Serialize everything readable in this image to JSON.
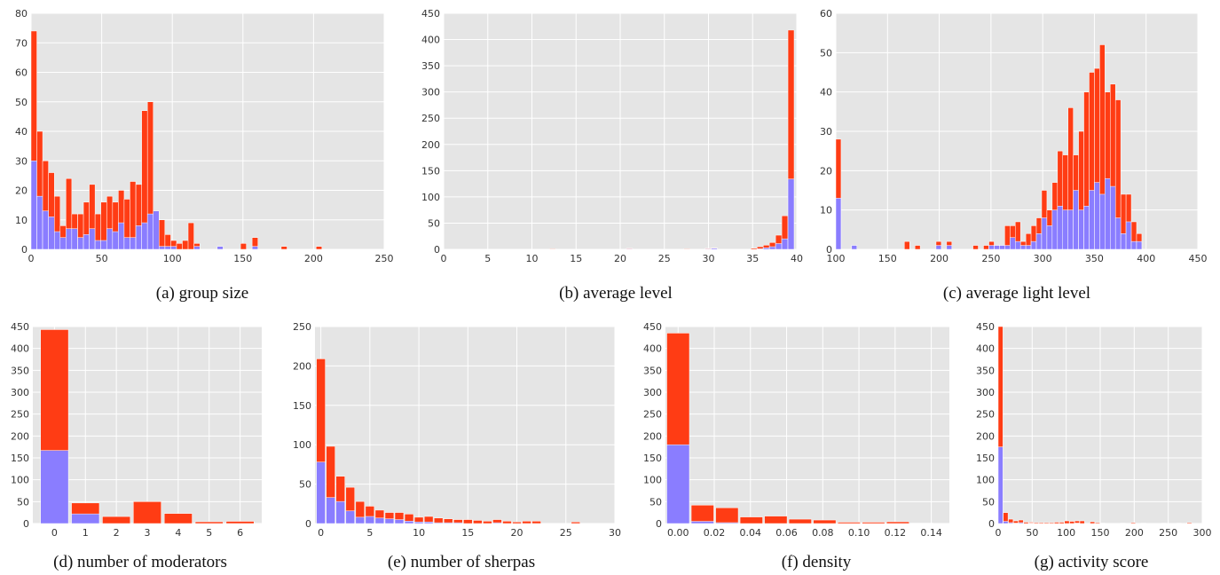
{
  "colors": {
    "total": "#ff3c14",
    "subset": "#8a7dff",
    "plot_bg": "#e5e5e5",
    "grid": "#ffffff"
  },
  "chart_data": [
    {
      "id": "a",
      "type": "bar",
      "caption": "(a) group size",
      "xlim": [
        0,
        250
      ],
      "ylim": [
        0,
        80
      ],
      "xticks": [
        0,
        50,
        100,
        150,
        200,
        250
      ],
      "yticks": [
        0,
        10,
        20,
        30,
        40,
        50,
        60,
        70,
        80
      ],
      "bin_width": 4.12,
      "bins_x": [
        0,
        4.1,
        8.2,
        12.4,
        16.5,
        20.6,
        24.7,
        28.8,
        33.0,
        37.1,
        41.2,
        45.3,
        49.4,
        53.6,
        57.7,
        61.8,
        65.9,
        70.0,
        74.2,
        78.3,
        82.4,
        86.5,
        90.6,
        94.8,
        98.9,
        103.0,
        107.1,
        111.2,
        115.4,
        119.5,
        123.6,
        131.8,
        148.3,
        156.5,
        177.1,
        201.8
      ],
      "total": [
        74,
        40,
        30,
        26,
        18,
        8,
        24,
        12,
        12,
        16,
        22,
        12,
        16,
        18,
        16,
        20,
        17,
        23,
        22,
        47,
        50,
        6,
        10,
        5,
        3,
        2,
        3,
        9,
        2,
        0,
        0,
        0,
        2,
        4,
        1,
        1
      ],
      "subset": [
        30,
        18,
        13,
        11,
        6,
        4,
        7,
        7,
        4,
        5,
        7,
        3,
        3,
        7,
        6,
        9,
        4,
        4,
        8,
        9,
        12,
        13,
        1,
        1,
        1,
        0,
        0,
        0,
        1,
        0,
        0,
        1,
        0,
        1,
        0,
        0
      ],
      "xlabel": "",
      "ylabel": ""
    },
    {
      "id": "b",
      "type": "bar",
      "caption": "(b) average level",
      "xlim": [
        0,
        40
      ],
      "ylim": [
        0,
        450
      ],
      "xticks": [
        0,
        5,
        10,
        15,
        20,
        25,
        30,
        35,
        40
      ],
      "yticks": [
        0,
        50,
        100,
        150,
        200,
        250,
        300,
        350,
        400,
        450
      ],
      "bin_width": 0.7,
      "bins_x": [
        12,
        20.7,
        27.2,
        29.6,
        30.3,
        34.8,
        35.5,
        36.2,
        36.9,
        37.6,
        38.3,
        39.0
      ],
      "total": [
        1,
        2,
        1,
        2,
        3,
        2,
        5,
        8,
        13,
        27,
        64,
        418
      ],
      "subset": [
        0,
        1,
        0,
        1,
        2,
        0,
        1,
        3,
        5,
        11,
        20,
        134
      ],
      "xlabel": "",
      "ylabel": ""
    },
    {
      "id": "c",
      "type": "bar",
      "caption": "(c) average light level",
      "xlim": [
        100,
        450
      ],
      "ylim": [
        0,
        60
      ],
      "xticks": [
        100,
        150,
        200,
        250,
        300,
        350,
        400,
        450
      ],
      "yticks": [
        0,
        10,
        20,
        30,
        40,
        50,
        60
      ],
      "bin_width": 5.1,
      "bins_x": [
        100,
        115.3,
        166.3,
        176.5,
        196.9,
        207.1,
        232.6,
        242.8,
        248.0,
        253.1,
        258.2,
        263.3,
        268.4,
        273.5,
        278.6,
        283.7,
        288.8,
        293.9,
        299.0,
        304.1,
        309.2,
        314.3,
        319.4,
        324.5,
        329.6,
        334.7,
        339.8,
        344.9,
        350.0,
        355.1,
        360.2,
        365.3,
        370.4,
        375.5,
        380.6,
        385.7,
        390.8
      ],
      "total": [
        28,
        1,
        2,
        1,
        2,
        2,
        1,
        1,
        2,
        1,
        1,
        6,
        6,
        7,
        2,
        4,
        6,
        8,
        15,
        10,
        17,
        25,
        24,
        36,
        24,
        30,
        40,
        45,
        46,
        52,
        40,
        42,
        38,
        14,
        14,
        7,
        4
      ],
      "subset": [
        13,
        1,
        0,
        0,
        1,
        1,
        0,
        0,
        1,
        1,
        1,
        1,
        3,
        2,
        1,
        1,
        2,
        4,
        8,
        6,
        10,
        11,
        10,
        10,
        15,
        10,
        11,
        15,
        17,
        14,
        18,
        16,
        8,
        4,
        7,
        2,
        2
      ],
      "xlabel": "",
      "ylabel": ""
    },
    {
      "id": "d",
      "type": "bar",
      "caption": "(d) number of moderators",
      "xlim": [
        -0.7,
        6.7
      ],
      "ylim": [
        0,
        450
      ],
      "xticks": [
        0,
        1,
        2,
        3,
        4,
        5,
        6
      ],
      "yticks": [
        0,
        50,
        100,
        150,
        200,
        250,
        300,
        350,
        400,
        450
      ],
      "bin_width": 0.9,
      "bins_x": [
        0,
        1,
        2,
        3,
        4,
        5,
        6
      ],
      "total": [
        443,
        47,
        16,
        50,
        23,
        4,
        5
      ],
      "subset": [
        167,
        22,
        0,
        0,
        0,
        0,
        0
      ],
      "xlabel": "",
      "ylabel": ""
    },
    {
      "id": "e",
      "type": "bar",
      "caption": "(e) number of sherpas",
      "xlim": [
        -0.6,
        30
      ],
      "ylim": [
        0,
        250
      ],
      "xticks": [
        0,
        5,
        10,
        15,
        20,
        25,
        30
      ],
      "yticks": [
        0,
        50,
        100,
        150,
        200,
        250
      ],
      "bin_width": 0.9,
      "bins_x": [
        0,
        1,
        2,
        3,
        4,
        5,
        6,
        7,
        8,
        9,
        10,
        11,
        12,
        13,
        14,
        15,
        16,
        17,
        18,
        19,
        20,
        21,
        22,
        26
      ],
      "total": [
        209,
        98,
        60,
        46,
        28,
        22,
        17,
        14,
        14,
        12,
        8,
        9,
        7,
        6,
        5,
        5,
        4,
        3,
        5,
        3,
        2,
        3,
        3,
        2
      ],
      "subset": [
        78,
        33,
        28,
        16,
        8,
        9,
        7,
        6,
        5,
        3,
        2,
        2,
        1,
        1,
        1,
        0,
        0,
        0,
        1,
        0,
        0,
        0,
        0,
        0
      ],
      "xlabel": "",
      "ylabel": ""
    },
    {
      "id": "f",
      "type": "bar",
      "caption": "(f) density",
      "xlim": [
        -0.007,
        0.15
      ],
      "ylim": [
        0,
        450
      ],
      "xticks": [
        "0.00",
        "0.02",
        "0.04",
        "0.06",
        "0.08",
        "0.10",
        "0.12",
        "0.14"
      ],
      "yticks": [
        0,
        50,
        100,
        150,
        200,
        250,
        300,
        350,
        400,
        450
      ],
      "bin_width": 0.0125,
      "bins_x": [
        0.0,
        0.0135,
        0.027,
        0.0405,
        0.054,
        0.0675,
        0.081,
        0.0945,
        0.108,
        0.1215,
        0.135
      ],
      "total": [
        435,
        42,
        36,
        15,
        17,
        10,
        8,
        3,
        3,
        4,
        1
      ],
      "subset": [
        180,
        5,
        2,
        0,
        0,
        0,
        0,
        0,
        0,
        0,
        0
      ],
      "xlabel": "",
      "ylabel": ""
    },
    {
      "id": "g",
      "type": "bar",
      "caption": "(g) activity score",
      "xlim": [
        0,
        300
      ],
      "ylim": [
        0,
        450
      ],
      "xticks": [
        0,
        50,
        100,
        150,
        200,
        250,
        300
      ],
      "yticks": [
        0,
        50,
        100,
        150,
        200,
        250,
        300,
        350,
        400,
        450
      ],
      "bin_width": 7,
      "bins_x": [
        0,
        7.5,
        15,
        22.5,
        30,
        37.5,
        45,
        52.5,
        60,
        67.5,
        75,
        82.5,
        90,
        97.5,
        105,
        112.5,
        120,
        135,
        142.5,
        150,
        180,
        195,
        210,
        240,
        262.5,
        277.5
      ],
      "total": [
        450,
        25,
        10,
        6,
        8,
        3,
        3,
        2,
        2,
        2,
        2,
        3,
        3,
        6,
        5,
        6,
        6,
        4,
        2,
        1,
        1,
        2,
        1,
        1,
        1,
        2
      ],
      "subset": [
        175,
        5,
        2,
        1,
        2,
        0,
        1,
        0,
        0,
        0,
        0,
        0,
        0,
        0,
        0,
        1,
        0,
        0,
        0,
        0,
        0,
        0,
        0,
        0,
        0,
        0
      ],
      "xlabel": "",
      "ylabel": ""
    }
  ]
}
